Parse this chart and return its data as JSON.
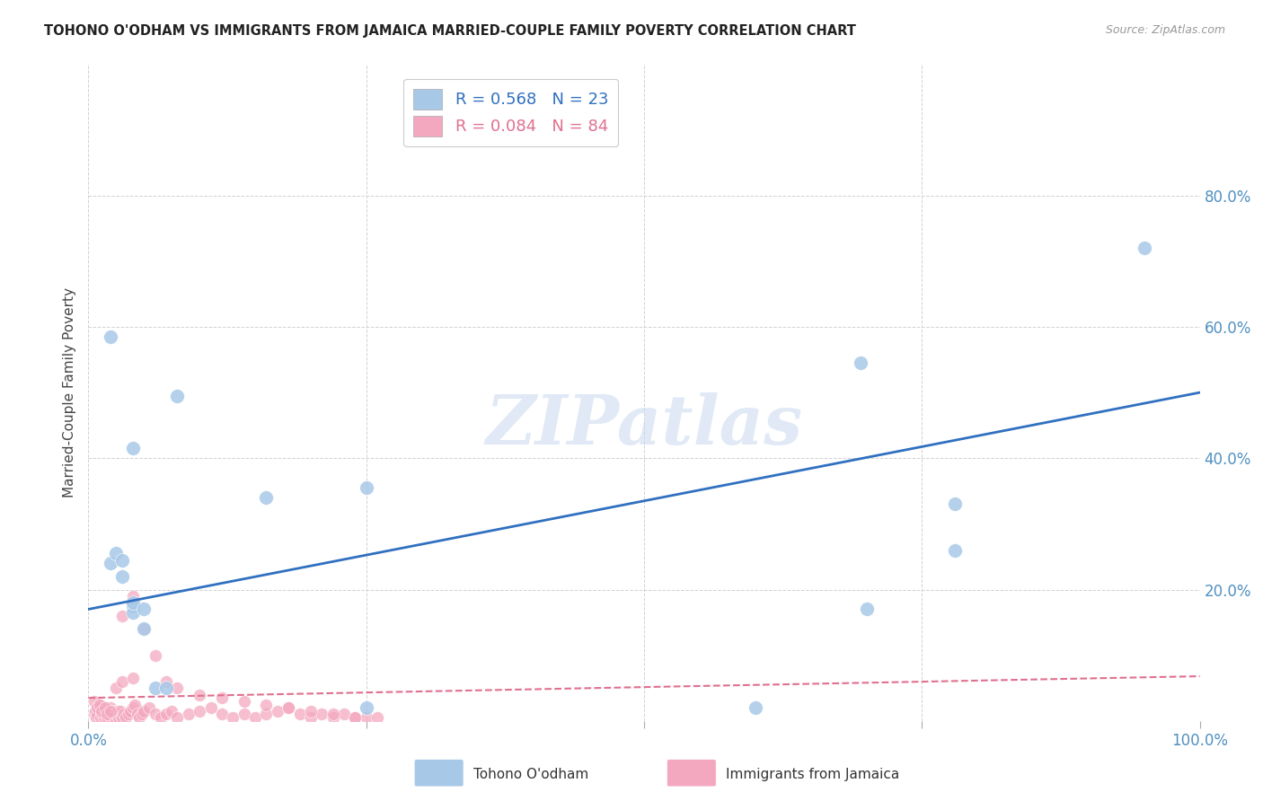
{
  "title": "TOHONO O'ODHAM VS IMMIGRANTS FROM JAMAICA MARRIED-COUPLE FAMILY POVERTY CORRELATION CHART",
  "source": "Source: ZipAtlas.com",
  "ylabel": "Married-Couple Family Poverty",
  "xlim": [
    0,
    1.0
  ],
  "ylim": [
    0,
    1.0
  ],
  "blue_R": 0.568,
  "blue_N": 23,
  "pink_R": 0.084,
  "pink_N": 84,
  "blue_color": "#a8c8e8",
  "pink_color": "#f4a8c0",
  "blue_line_color": "#3070c0",
  "pink_line_color": "#e07090",
  "background_color": "#ffffff",
  "blue_line_x0": 0.0,
  "blue_line_y0": 0.17,
  "blue_line_x1": 1.0,
  "blue_line_y1": 0.5,
  "pink_line_x0": 0.0,
  "pink_line_y0": 0.035,
  "pink_line_x1": 1.0,
  "pink_line_y1": 0.068,
  "blue_scatter_x": [
    0.02,
    0.04,
    0.08,
    0.02,
    0.025,
    0.16,
    0.25,
    0.03,
    0.03,
    0.04,
    0.7,
    0.78,
    0.695,
    0.95,
    0.78,
    0.25,
    0.6,
    0.04,
    0.04,
    0.05,
    0.05,
    0.06,
    0.07
  ],
  "blue_scatter_y": [
    0.585,
    0.415,
    0.495,
    0.24,
    0.255,
    0.34,
    0.355,
    0.22,
    0.245,
    0.175,
    0.17,
    0.26,
    0.545,
    0.72,
    0.33,
    0.02,
    0.02,
    0.165,
    0.18,
    0.17,
    0.14,
    0.05,
    0.05
  ],
  "pink_scatter_x": [
    0.005,
    0.006,
    0.007,
    0.008,
    0.009,
    0.01,
    0.011,
    0.012,
    0.013,
    0.014,
    0.015,
    0.016,
    0.017,
    0.018,
    0.019,
    0.02,
    0.021,
    0.022,
    0.023,
    0.024,
    0.025,
    0.026,
    0.027,
    0.028,
    0.029,
    0.03,
    0.032,
    0.034,
    0.036,
    0.038,
    0.04,
    0.042,
    0.044,
    0.046,
    0.048,
    0.05,
    0.055,
    0.06,
    0.065,
    0.07,
    0.075,
    0.08,
    0.09,
    0.1,
    0.11,
    0.12,
    0.13,
    0.14,
    0.15,
    0.16,
    0.17,
    0.18,
    0.19,
    0.2,
    0.21,
    0.22,
    0.23,
    0.24,
    0.25,
    0.03,
    0.04,
    0.05,
    0.06,
    0.07,
    0.08,
    0.1,
    0.12,
    0.14,
    0.16,
    0.18,
    0.2,
    0.22,
    0.24,
    0.26,
    0.005,
    0.008,
    0.01,
    0.012,
    0.015,
    0.017,
    0.02,
    0.025,
    0.03,
    0.04
  ],
  "pink_scatter_y": [
    0.01,
    0.015,
    0.005,
    0.01,
    0.02,
    0.025,
    0.005,
    0.01,
    0.015,
    0.005,
    0.01,
    0.02,
    0.005,
    0.01,
    0.015,
    0.02,
    0.005,
    0.01,
    0.015,
    0.005,
    0.01,
    0.015,
    0.005,
    0.01,
    0.015,
    0.005,
    0.01,
    0.005,
    0.01,
    0.015,
    0.02,
    0.025,
    0.01,
    0.005,
    0.01,
    0.015,
    0.02,
    0.01,
    0.005,
    0.01,
    0.015,
    0.005,
    0.01,
    0.015,
    0.02,
    0.01,
    0.005,
    0.01,
    0.005,
    0.01,
    0.015,
    0.02,
    0.01,
    0.005,
    0.01,
    0.005,
    0.01,
    0.005,
    0.005,
    0.16,
    0.19,
    0.14,
    0.1,
    0.06,
    0.05,
    0.04,
    0.035,
    0.03,
    0.025,
    0.02,
    0.015,
    0.01,
    0.005,
    0.005,
    0.03,
    0.02,
    0.025,
    0.015,
    0.02,
    0.01,
    0.015,
    0.05,
    0.06,
    0.065
  ]
}
